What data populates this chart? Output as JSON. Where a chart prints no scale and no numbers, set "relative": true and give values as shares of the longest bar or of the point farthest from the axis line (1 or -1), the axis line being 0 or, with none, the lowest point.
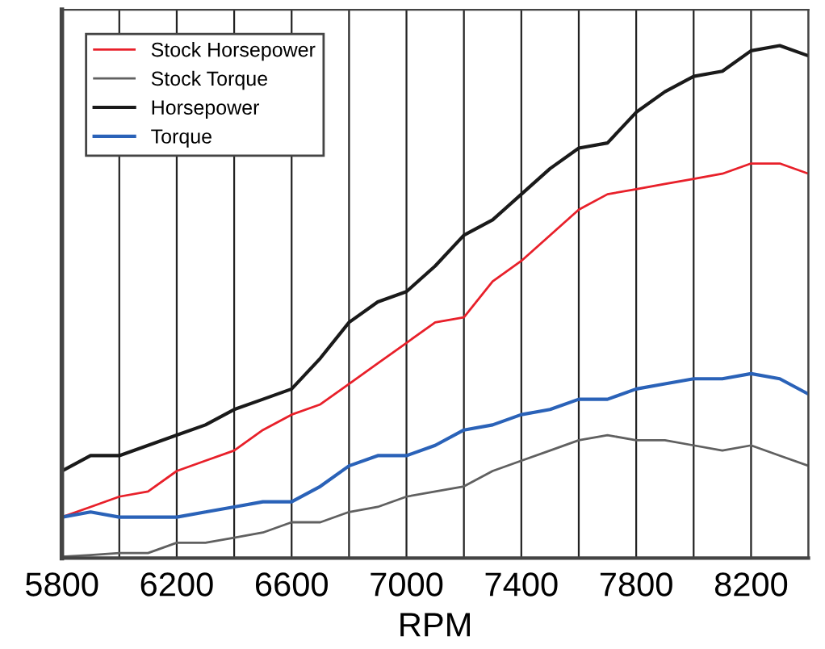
{
  "chart_data": {
    "type": "line",
    "xlabel": "RPM",
    "relative": true,
    "x": [
      5800,
      5900,
      6000,
      6100,
      6200,
      6300,
      6400,
      6500,
      6600,
      6700,
      6800,
      6900,
      7000,
      7100,
      7200,
      7300,
      7400,
      7500,
      7600,
      7700,
      7800,
      7900,
      8000,
      8100,
      8200,
      8300,
      8400
    ],
    "xlim": [
      5800,
      8400
    ],
    "xticks": [
      5800,
      {
        "value": 6000,
        "label": null
      },
      6200,
      {
        "value": 6400,
        "label": null
      },
      6600,
      {
        "value": 6800,
        "label": null
      },
      7000,
      {
        "value": 7200,
        "label": null
      },
      7400,
      {
        "value": 7600,
        "label": null
      },
      7800,
      {
        "value": 8000,
        "label": null
      },
      8200,
      {
        "value": 8400,
        "label": null
      }
    ],
    "grid": "x",
    "legend": "top left",
    "marker": "none",
    "line_style": "solid",
    "series": [
      {
        "name": "Stock Horsepower",
        "color": "#e8202a",
        "values": [
          0.08,
          0.1,
          0.12,
          0.13,
          0.17,
          0.19,
          0.21,
          0.25,
          0.28,
          0.3,
          0.34,
          0.38,
          0.42,
          0.46,
          0.47,
          0.54,
          0.58,
          0.63,
          0.68,
          0.71,
          0.72,
          0.73,
          0.74,
          0.75,
          0.77,
          0.77,
          0.75
        ]
      },
      {
        "name": "Stock Torque",
        "color": "#606060",
        "values": [
          0.003,
          0.006,
          0.01,
          0.01,
          0.03,
          0.03,
          0.04,
          0.05,
          0.07,
          0.07,
          0.09,
          0.1,
          0.12,
          0.13,
          0.14,
          0.17,
          0.19,
          0.21,
          0.23,
          0.24,
          0.23,
          0.23,
          0.22,
          0.21,
          0.22,
          0.2,
          0.18
        ]
      },
      {
        "name": "Horsepower",
        "color": "#1a1a1a",
        "values": [
          0.17,
          0.2,
          0.2,
          0.22,
          0.24,
          0.26,
          0.29,
          0.31,
          0.33,
          0.39,
          0.46,
          0.5,
          0.52,
          0.57,
          0.63,
          0.66,
          0.71,
          0.76,
          0.8,
          0.81,
          0.87,
          0.91,
          0.94,
          0.95,
          0.99,
          1,
          0.98
        ]
      },
      {
        "name": "Torque",
        "color": "#2a62b8",
        "values": [
          0.08,
          0.09,
          0.08,
          0.08,
          0.08,
          0.09,
          0.1,
          0.11,
          0.11,
          0.14,
          0.18,
          0.2,
          0.2,
          0.22,
          0.25,
          0.26,
          0.28,
          0.29,
          0.31,
          0.31,
          0.33,
          0.34,
          0.35,
          0.35,
          0.36,
          0.35,
          0.32
        ]
      }
    ]
  }
}
